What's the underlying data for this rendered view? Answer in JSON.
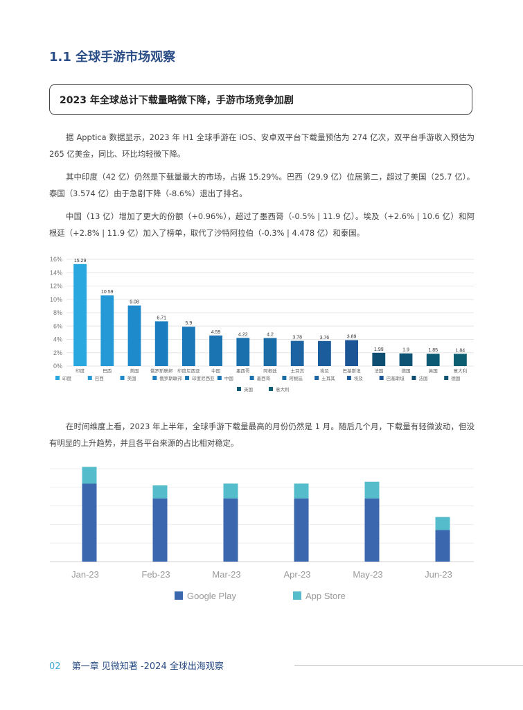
{
  "page": {
    "section_title": "1.1 全球手游市场观察",
    "subtitle": "2023 年全球总计下载量略微下降，手游市场竞争加剧",
    "paragraphs": [
      "据 Apptica 数据显示，2023 年 H1 全球手游在 iOS、安卓双平台下载量预估为 274 亿次，双平台手游收入预估为 265 亿美金，同比、环比均轻微下降。",
      "其中印度（42 亿）仍然是下载量最大的市场，占据 15.29%。巴西（29.9 亿）位居第二，超过了美国（25.7 亿）。泰国（3.574 亿）由于急剧下降（-8.6%）退出了排名。",
      "中国（13 亿）增加了更大的份额（+0.96%），超过了墨西哥（-0.5% | 11.9 亿）。埃及（+2.6% | 10.6 亿）和阿根廷（+2.8% | 11.9 亿）加入了榜单，取代了沙特阿拉伯（-0.3% | 4.478 亿）和泰国。",
      "在时间维度上看，2023 年上半年，全球手游下载量最高的月份仍然是 1 月。随后几个月，下载量有轻微波动，但没有明显的上升趋势，并且各平台来源的占比相对稳定。"
    ],
    "footer": {
      "page_number": "02",
      "chapter": "第一章  见微知著 -2024 全球出海观察"
    }
  },
  "chart_data": [
    {
      "type": "bar",
      "categories": [
        "印度",
        "巴西",
        "美国",
        "俄罗斯联邦",
        "印度尼西亚",
        "中国",
        "墨西哥",
        "阿根廷",
        "土耳其",
        "埃及",
        "巴基斯坦",
        "法国",
        "德国",
        "英国",
        "意大利"
      ],
      "values": [
        15.29,
        10.59,
        9.08,
        6.71,
        5.9,
        4.59,
        4.22,
        4.2,
        3.78,
        3.76,
        3.89,
        1.99,
        1.9,
        1.85,
        1.84
      ],
      "value_labels": [
        "15.29",
        "10.59",
        "9.08",
        "6.71",
        "5.9",
        "4.59",
        "4.22",
        "4.2",
        "3.78",
        "3.76",
        "3.89",
        "1.99",
        "1.9",
        "1.85",
        "1.84"
      ],
      "colors": [
        "#29a8e0",
        "#2499d6",
        "#1f8acb",
        "#1a7dc0",
        "#1a78b8",
        "#1a74b2",
        "#1a70ac",
        "#1a6ca6",
        "#1b63a2",
        "#1b5c9c",
        "#1c5596",
        "#0e4e72",
        "#0e5373",
        "#0d5a74",
        "#0c5e70"
      ],
      "yticks": [
        "0%",
        "2%",
        "4%",
        "6%",
        "8%",
        "10%",
        "12%",
        "14%",
        "16%"
      ],
      "ylim": [
        0,
        16
      ],
      "legend": "bottom"
    },
    {
      "type": "bar",
      "stacked": true,
      "categories": [
        "Jan-23",
        "Feb-23",
        "Mar-23",
        "Apr-23",
        "May-23",
        "Jun-23"
      ],
      "series": [
        {
          "name": "Google Play",
          "color": "#3a67ad",
          "values": [
            42,
            34,
            34,
            34,
            34,
            17
          ]
        },
        {
          "name": "App Store",
          "color": "#54bccb",
          "values": [
            9,
            7,
            8,
            8,
            9,
            7
          ]
        }
      ],
      "ylim": [
        0,
        50
      ],
      "grid": true,
      "legend": "bottom"
    }
  ]
}
